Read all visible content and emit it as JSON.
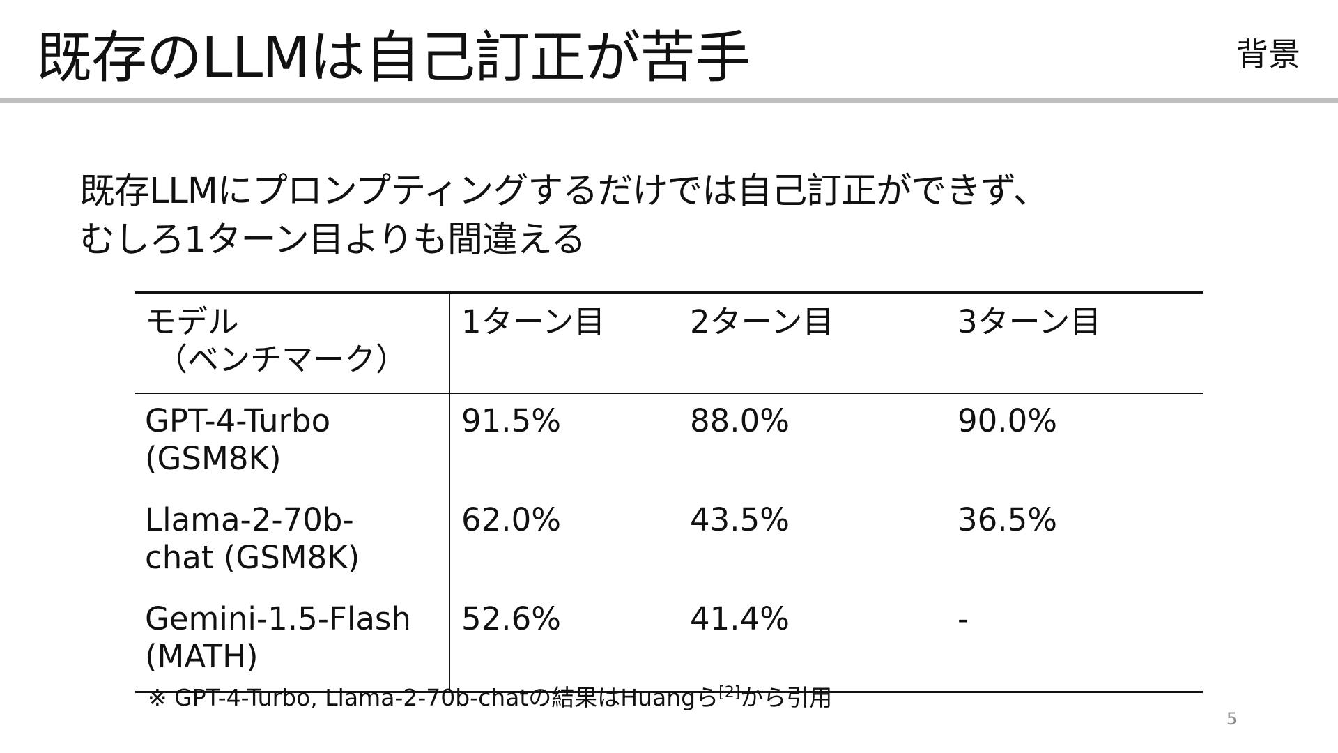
{
  "slide": {
    "title": "既存のLLMは自己訂正が苦手",
    "section_tag": "背景",
    "lead_lines": [
      "既存LLMにプロンプティングするだけでは自己訂正ができず、",
      "むしろ1ターン目よりも間違える"
    ],
    "page_number": "5"
  },
  "table": {
    "headers": {
      "model_line1": "モデル",
      "model_line2": "（ベンチマーク）",
      "turn1": "1ターン目",
      "turn2": "2ターン目",
      "turn3": "3ターン目"
    },
    "rows": [
      {
        "model_line1": "GPT-4-Turbo",
        "model_line2": "(GSM8K)",
        "turn1": "91.5%",
        "turn2": "88.0%",
        "turn3": "90.0%"
      },
      {
        "model_line1": "Llama-2-70b-",
        "model_line2": "chat (GSM8K)",
        "turn1": "62.0%",
        "turn2": "43.5%",
        "turn3": "36.5%"
      },
      {
        "model_line1": "Gemini-1.5-Flash",
        "model_line2": "(MATH)",
        "turn1": "52.6%",
        "turn2": "41.4%",
        "turn3": "-"
      }
    ]
  },
  "footnote": {
    "text_before": "※ GPT-4-Turbo, Llama-2-70b-chatの結果はHuangら",
    "ref": "[2]",
    "text_after": "から引用"
  },
  "colors": {
    "title_rule": "#bfbfbf",
    "text": "#111111",
    "page_number": "#8a8a8a"
  }
}
